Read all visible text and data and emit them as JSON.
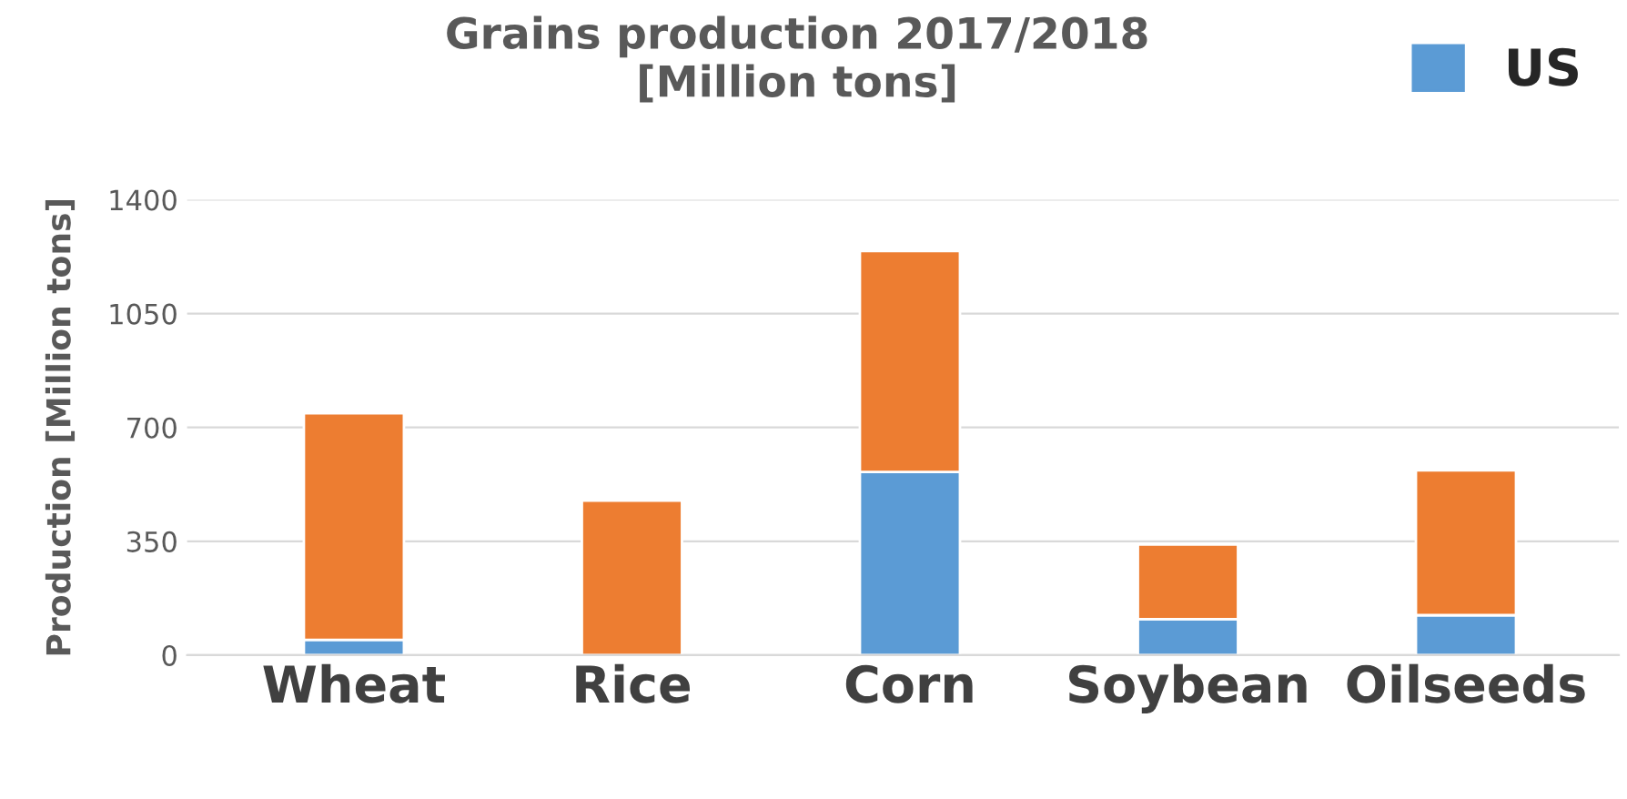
{
  "chart_data": {
    "type": "bar",
    "title": "Grains production 2017/2018\n[Million tons]",
    "ylabel": "Production [Million tons]",
    "categories": [
      "Wheat",
      "Rice",
      "Corn",
      "Soybean",
      "Oilseeds"
    ],
    "stacked": true,
    "series": [
      {
        "name": "US",
        "color": "#5b9bd5",
        "values": [
          47,
          0,
          563,
          111,
          123
        ]
      },
      {
        "color": "#ed7d31",
        "values": [
          697,
          475,
          679,
          229,
          445
        ]
      }
    ],
    "ylim": [
      0,
      1400
    ],
    "yticks": [
      0,
      350,
      700,
      1050,
      1400
    ],
    "grid": "y",
    "legend": "top right"
  }
}
